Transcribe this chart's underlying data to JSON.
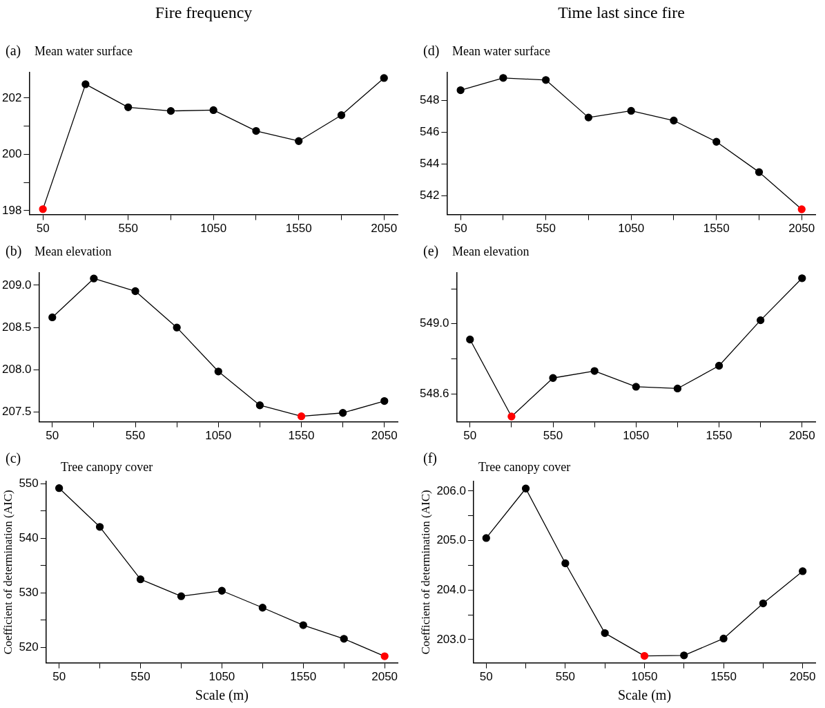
{
  "chart_data": [
    {
      "type": "line",
      "title": "Fire frequency",
      "subtitle": "Mean water surface",
      "annotations": [
        "(a)"
      ],
      "x": [
        50,
        300,
        550,
        800,
        1050,
        1300,
        1550,
        1800,
        2050
      ],
      "values": [
        198.05,
        202.49,
        201.67,
        201.54,
        201.57,
        200.83,
        200.47,
        201.39,
        202.71
      ],
      "color": "#000000",
      "colors": [
        "#ff0000",
        "#000000",
        "#000000",
        "#000000",
        "#000000",
        "#000000",
        "#000000",
        "#000000",
        "#000000"
      ],
      "marker": "circle",
      "grid": false,
      "xlim": [
        -30,
        2130
      ],
      "xticks": [
        50,
        {
          "value": 300,
          "label": null
        },
        550,
        {
          "value": 800,
          "label": null
        },
        1050,
        {
          "value": 1300,
          "label": null
        },
        1550,
        {
          "value": 1800,
          "label": null
        },
        2050
      ],
      "ylim": [
        197.86,
        202.9
      ],
      "yticks": [
        198,
        {
          "value": 199,
          "label": null
        },
        200,
        {
          "value": 201,
          "label": null
        },
        202
      ]
    },
    {
      "type": "line",
      "subtitle": "Mean elevation",
      "annotations": [
        "(b)"
      ],
      "x": [
        50,
        300,
        550,
        800,
        1050,
        1300,
        1550,
        1800,
        2050
      ],
      "values": [
        208.62,
        209.08,
        208.93,
        208.5,
        207.98,
        207.58,
        207.45,
        207.49,
        207.63
      ],
      "color": "#000000",
      "colors": [
        "#000000",
        "#000000",
        "#000000",
        "#000000",
        "#000000",
        "#000000",
        "#ff0000",
        "#000000",
        "#000000"
      ],
      "marker": "circle",
      "grid": false,
      "xlim": [
        -30,
        2130
      ],
      "xticks": [
        50,
        {
          "value": 300,
          "label": null
        },
        550,
        {
          "value": 800,
          "label": null
        },
        1050,
        {
          "value": 1300,
          "label": null
        },
        1550,
        {
          "value": 1800,
          "label": null
        },
        2050
      ],
      "ylim": [
        207.385,
        209.145
      ],
      "yticks": [
        {
          "value": 207.5,
          "label": "207.5"
        },
        {
          "value": 208,
          "label": "208.0"
        },
        {
          "value": 208.5,
          "label": "208.5"
        },
        {
          "value": 209,
          "label": "209.0"
        }
      ]
    },
    {
      "type": "line",
      "subtitle": "Tree canopy cover",
      "annotations": [
        "(c)"
      ],
      "xlabel": "Scale (m)",
      "ylabel": "Coefficient of determination (AIC)",
      "x": [
        50,
        300,
        550,
        800,
        1050,
        1300,
        1550,
        1800,
        2050
      ],
      "values": [
        549.2,
        542.1,
        532.5,
        529.4,
        530.4,
        527.3,
        524.1,
        521.6,
        518.4
      ],
      "color": "#000000",
      "colors": [
        "#000000",
        "#000000",
        "#000000",
        "#000000",
        "#000000",
        "#000000",
        "#000000",
        "#000000",
        "#ff0000"
      ],
      "marker": "circle",
      "grid": false,
      "xlim": [
        -30,
        2130
      ],
      "xticks": [
        50,
        {
          "value": 300,
          "label": null
        },
        550,
        {
          "value": 800,
          "label": null
        },
        1050,
        {
          "value": 1300,
          "label": null
        },
        1550,
        {
          "value": 1800,
          "label": null
        },
        2050
      ],
      "ylim": [
        517.2,
        550.4
      ],
      "yticks": [
        520,
        {
          "value": 525,
          "label": null
        },
        530,
        {
          "value": 535,
          "label": null
        },
        540,
        {
          "value": 545,
          "label": null
        },
        550
      ]
    },
    {
      "type": "line",
      "title": "Time last since fire",
      "subtitle": "Mean water surface",
      "annotations": [
        "(d)"
      ],
      "x": [
        50,
        300,
        550,
        800,
        1050,
        1300,
        1550,
        1800,
        2050
      ],
      "values": [
        548.63,
        549.4,
        549.27,
        546.92,
        547.34,
        546.73,
        545.4,
        543.5,
        541.17
      ],
      "color": "#000000",
      "colors": [
        "#000000",
        "#000000",
        "#000000",
        "#000000",
        "#000000",
        "#000000",
        "#000000",
        "#000000",
        "#ff0000"
      ],
      "marker": "circle",
      "grid": false,
      "xlim": [
        -30,
        2130
      ],
      "xticks": [
        50,
        {
          "value": 300,
          "label": null
        },
        550,
        {
          "value": 800,
          "label": null
        },
        1050,
        {
          "value": 1300,
          "label": null
        },
        1550,
        {
          "value": 1800,
          "label": null
        },
        2050
      ],
      "ylim": [
        540.84,
        549.73
      ],
      "yticks": [
        542,
        544,
        546,
        548
      ]
    },
    {
      "type": "line",
      "subtitle": "Mean elevation",
      "annotations": [
        "(e)"
      ],
      "x": [
        50,
        300,
        550,
        800,
        1050,
        1300,
        1550,
        1800,
        2050
      ],
      "values": [
        548.91,
        548.47,
        548.69,
        548.73,
        548.64,
        548.63,
        548.76,
        549.02,
        549.26
      ],
      "color": "#000000",
      "colors": [
        "#000000",
        "#ff0000",
        "#000000",
        "#000000",
        "#000000",
        "#000000",
        "#000000",
        "#000000",
        "#000000"
      ],
      "marker": "circle",
      "grid": false,
      "xlim": [
        -30,
        2130
      ],
      "xticks": [
        50,
        {
          "value": 300,
          "label": null
        },
        550,
        {
          "value": 800,
          "label": null
        },
        1050,
        {
          "value": 1300,
          "label": null
        },
        1550,
        {
          "value": 1800,
          "label": null
        },
        2050
      ],
      "ylim": [
        548.44,
        549.29
      ],
      "yticks": [
        {
          "value": 548.6,
          "label": "548.6"
        },
        {
          "value": 548.8,
          "label": null
        },
        {
          "value": 549,
          "label": "549.0"
        },
        {
          "value": 549.2,
          "label": null
        }
      ]
    },
    {
      "type": "line",
      "subtitle": "Tree canopy cover",
      "annotations": [
        "(f)"
      ],
      "xlabel": "Scale (m)",
      "ylabel": "Coefficient of determination (AIC)",
      "x": [
        50,
        300,
        550,
        800,
        1050,
        1300,
        1550,
        1800,
        2050
      ],
      "values": [
        205.05,
        206.05,
        204.54,
        203.13,
        202.67,
        202.68,
        203.02,
        203.73,
        204.38
      ],
      "color": "#000000",
      "colors": [
        "#000000",
        "#000000",
        "#000000",
        "#000000",
        "#ff0000",
        "#000000",
        "#000000",
        "#000000",
        "#000000"
      ],
      "marker": "circle",
      "grid": false,
      "xlim": [
        -30,
        2130
      ],
      "xticks": [
        50,
        {
          "value": 300,
          "label": null
        },
        550,
        {
          "value": 800,
          "label": null
        },
        1050,
        {
          "value": 1300,
          "label": null
        },
        1550,
        {
          "value": 1800,
          "label": null
        },
        2050
      ],
      "ylim": [
        202.53,
        206.19
      ],
      "yticks": [
        {
          "value": 203,
          "label": "203.0"
        },
        {
          "value": 203.5,
          "label": null
        },
        {
          "value": 204,
          "label": "204.0"
        },
        {
          "value": 204.5,
          "label": null
        },
        {
          "value": 205,
          "label": "205.0"
        },
        {
          "value": 205.5,
          "label": null
        },
        {
          "value": 206,
          "label": "206.0"
        }
      ]
    }
  ]
}
